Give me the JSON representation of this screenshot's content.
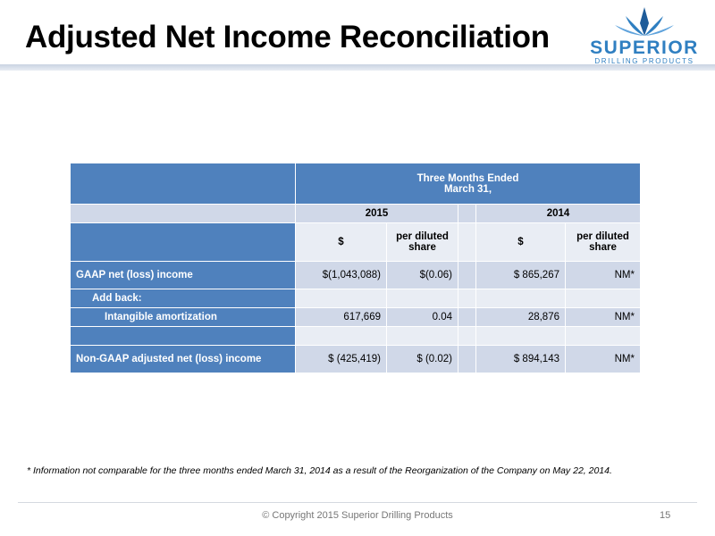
{
  "slide": {
    "title": "Adjusted Net Income Reconciliation",
    "logo": {
      "word": "SUPERIOR",
      "sub": "DRILLING PRODUCTS",
      "color": "#2f7fc1"
    },
    "footnote": "* Information not comparable for the three months ended March 31, 2014 as a result of the Reorganization of the Company on May 22, 2014.",
    "copyright": "© Copyright 2015 Superior Drilling Products",
    "page_number": "15"
  },
  "table": {
    "period_header_line1": "Three Months Ended",
    "period_header_line2": "March 31,",
    "years": [
      "2015",
      "2014"
    ],
    "col_dollar": "$",
    "col_per_share_line1": "per diluted",
    "col_per_share_line2": "share",
    "rows": [
      {
        "label": "GAAP net (loss) income",
        "v2015": "$(1,043,088)",
        "p2015": "$(0.06)",
        "v2014": "$ 865,267",
        "p2014": "NM*"
      },
      {
        "label": "Add back:",
        "v2015": "",
        "p2015": "",
        "v2014": "",
        "p2014": ""
      },
      {
        "label": "Intangible amortization",
        "v2015": "617,669",
        "p2015": "0.04",
        "v2014": "28,876",
        "p2014": "NM*"
      },
      {
        "label": "",
        "v2015": "",
        "p2015": "",
        "v2014": "",
        "p2014": ""
      },
      {
        "label": "Non-GAAP adjusted net (loss) income",
        "v2015": "$  (425,419)",
        "p2015": "$  (0.02)",
        "v2014": "$ 894,143",
        "p2014": "NM*"
      }
    ]
  },
  "colors": {
    "header_blue": "#4f81bd",
    "band": "#d0d8e8",
    "light_band": "#e9edf4"
  }
}
